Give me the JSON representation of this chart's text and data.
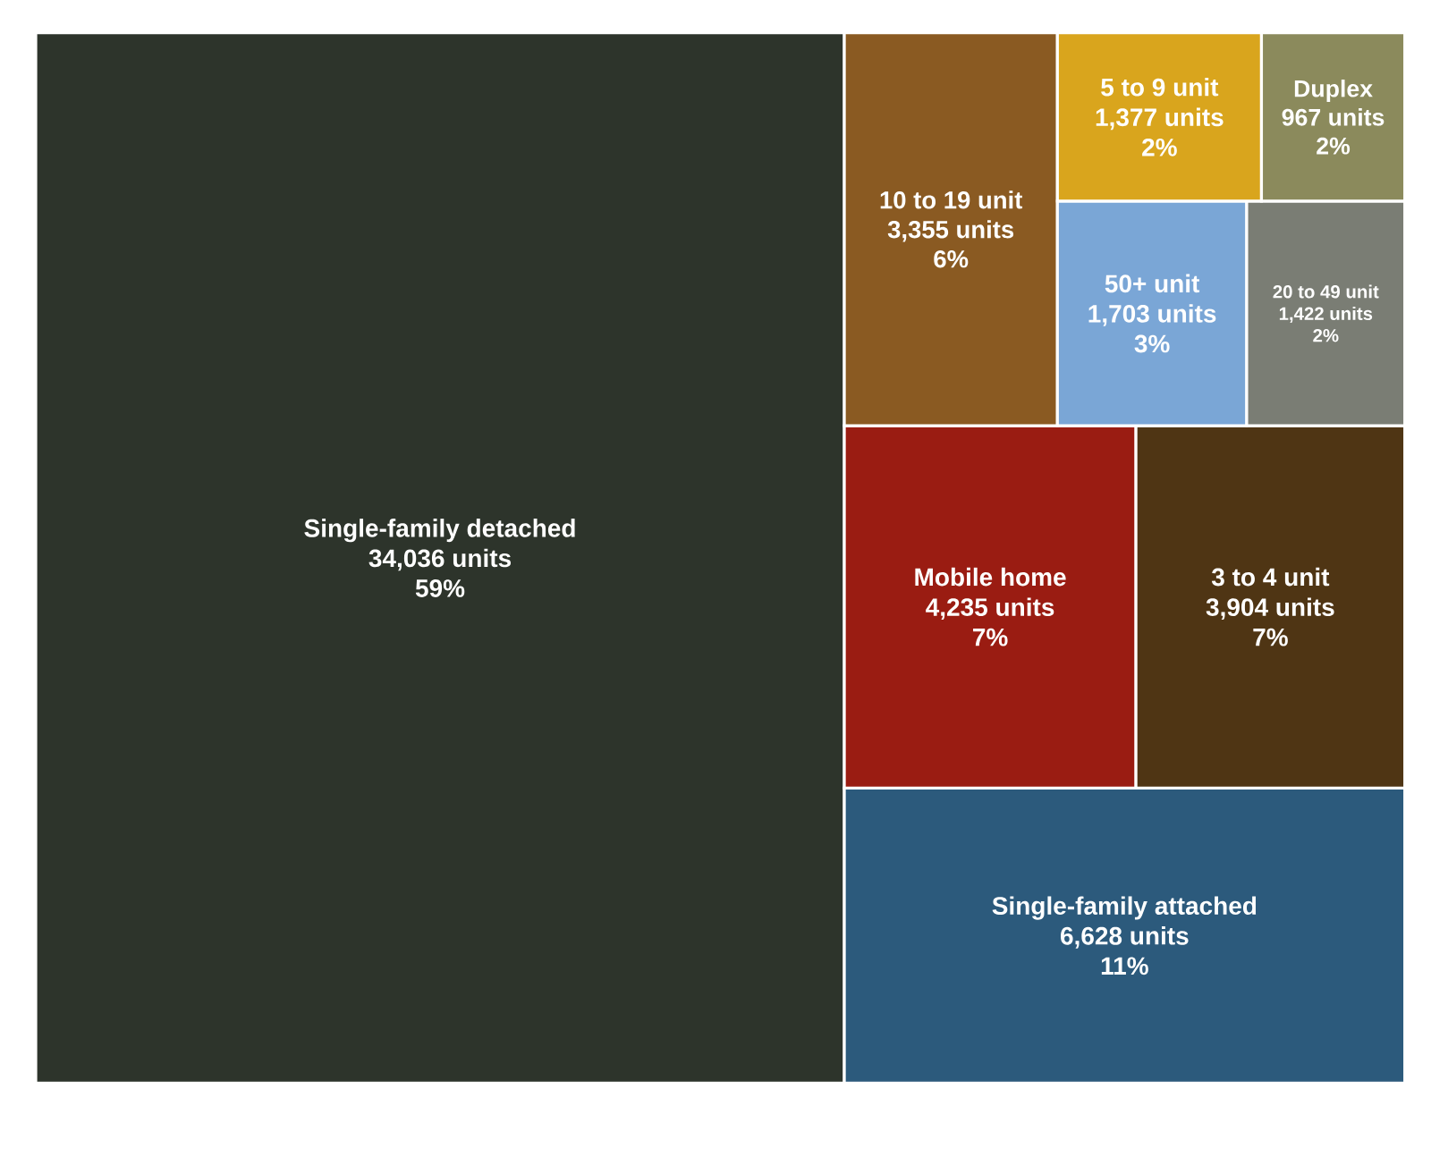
{
  "chart_data": {
    "type": "other",
    "categories": [
      "Single-family detached",
      "Single-family attached",
      "Mobile home",
      "3 to 4 unit",
      "10 to 19 unit",
      "50+ unit",
      "20 to 49 unit",
      "5 to 9 unit",
      "Duplex"
    ],
    "values": [
      34036,
      6628,
      4235,
      3904,
      3355,
      1703,
      1422,
      1377,
      967
    ],
    "value_labels": [
      "34,036 units",
      "6,628 units",
      "4,235 units",
      "3,904 units",
      "3,355 units",
      "1,703 units",
      "1,422 units",
      "1,377 units",
      "967 units"
    ],
    "colors": [
      "#2d342b",
      "#2c5a7c",
      "#9a1c12",
      "#4f3514",
      "#8a5a22",
      "#7aa6d6",
      "#7a7d74",
      "#d9a51d",
      "#8b8a5c"
    ],
    "annotations": [
      "59%",
      "11%",
      "7%",
      "7%",
      "6%",
      "3%",
      "2%",
      "2%",
      "2%"
    ]
  }
}
